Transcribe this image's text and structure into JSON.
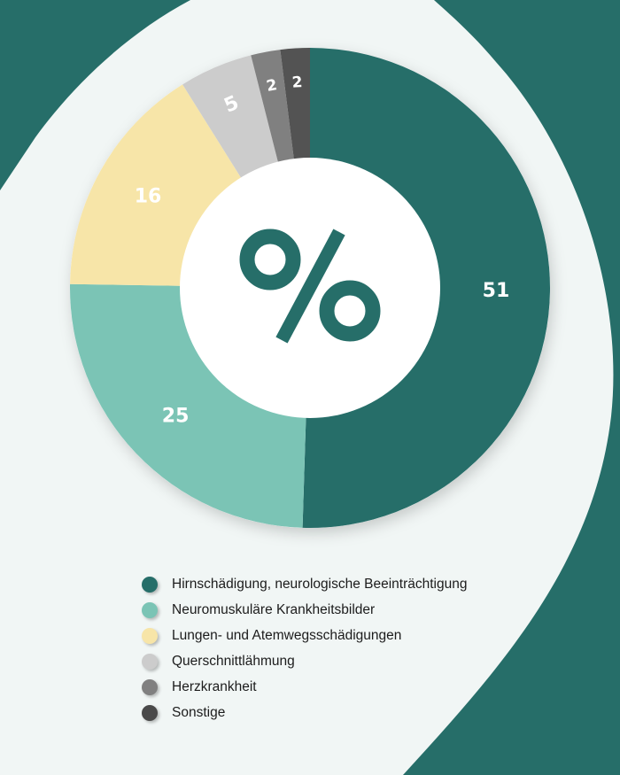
{
  "chart_data": {
    "type": "pie",
    "variant": "donut",
    "title": "",
    "center_symbol": "%",
    "unit": "%",
    "categories": [
      "Hirnschädigung, neurologische Beeinträchtigung",
      "Neuromuskuläre Krankheitsbilder",
      "Lungen- und Atemwegsschädigungen",
      "Querschnittlähmung",
      "Herzkrankheit",
      "Sonstige"
    ],
    "values": [
      51,
      25,
      16,
      5,
      2,
      2
    ],
    "colors": [
      "#266e69",
      "#7bc4b5",
      "#f7e5a8",
      "#cccccc",
      "#808080",
      "#535353"
    ],
    "legend_position": "bottom",
    "grid": false
  },
  "legend": {
    "items": [
      {
        "label": "Hirnschädigung, neurologische Beeinträchtigung",
        "color": "#266e69"
      },
      {
        "label": "Neuromuskuläre Krankheitsbilder",
        "color": "#7bc4b5"
      },
      {
        "label": "Lungen- und Atemwegsschädigungen",
        "color": "#f7e5a8"
      },
      {
        "label": "Querschnittlähmung",
        "color": "#cccccc"
      },
      {
        "label": "Herzkrankheit",
        "color": "#808080"
      },
      {
        "label": "Sonstige",
        "color": "#4a4a4a"
      }
    ]
  },
  "theme": {
    "background": "#f1f6f5",
    "accent": "#266e69",
    "center_fill": "#ffffff"
  }
}
